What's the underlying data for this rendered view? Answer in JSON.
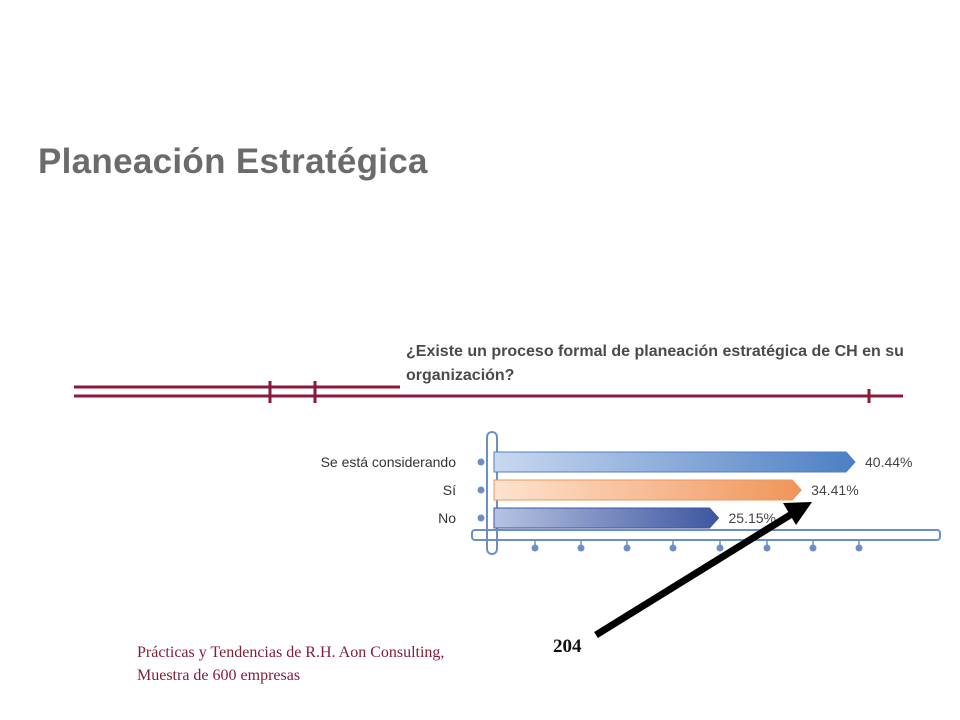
{
  "slide": {
    "title": "Planeación Estratégica",
    "question": "¿Existe un proceso formal de planeación estratégica de CH en su organización?",
    "source": "Prácticas y Tendencias de R.H. Aon Consulting, Muestra de 600 empresas",
    "callout_number": "204"
  },
  "chart_data": {
    "type": "bar",
    "orientation": "horizontal",
    "categories": [
      "Se está considerando",
      "Sí",
      "No"
    ],
    "values": [
      40.44,
      34.41,
      25.15
    ],
    "value_labels": [
      "40.44%",
      "34.41%",
      "25.15%"
    ],
    "xlim": [
      0,
      45
    ],
    "colors": [
      "#4d7fc4",
      "#f0955a",
      "#3d56a0"
    ],
    "grid": false
  }
}
